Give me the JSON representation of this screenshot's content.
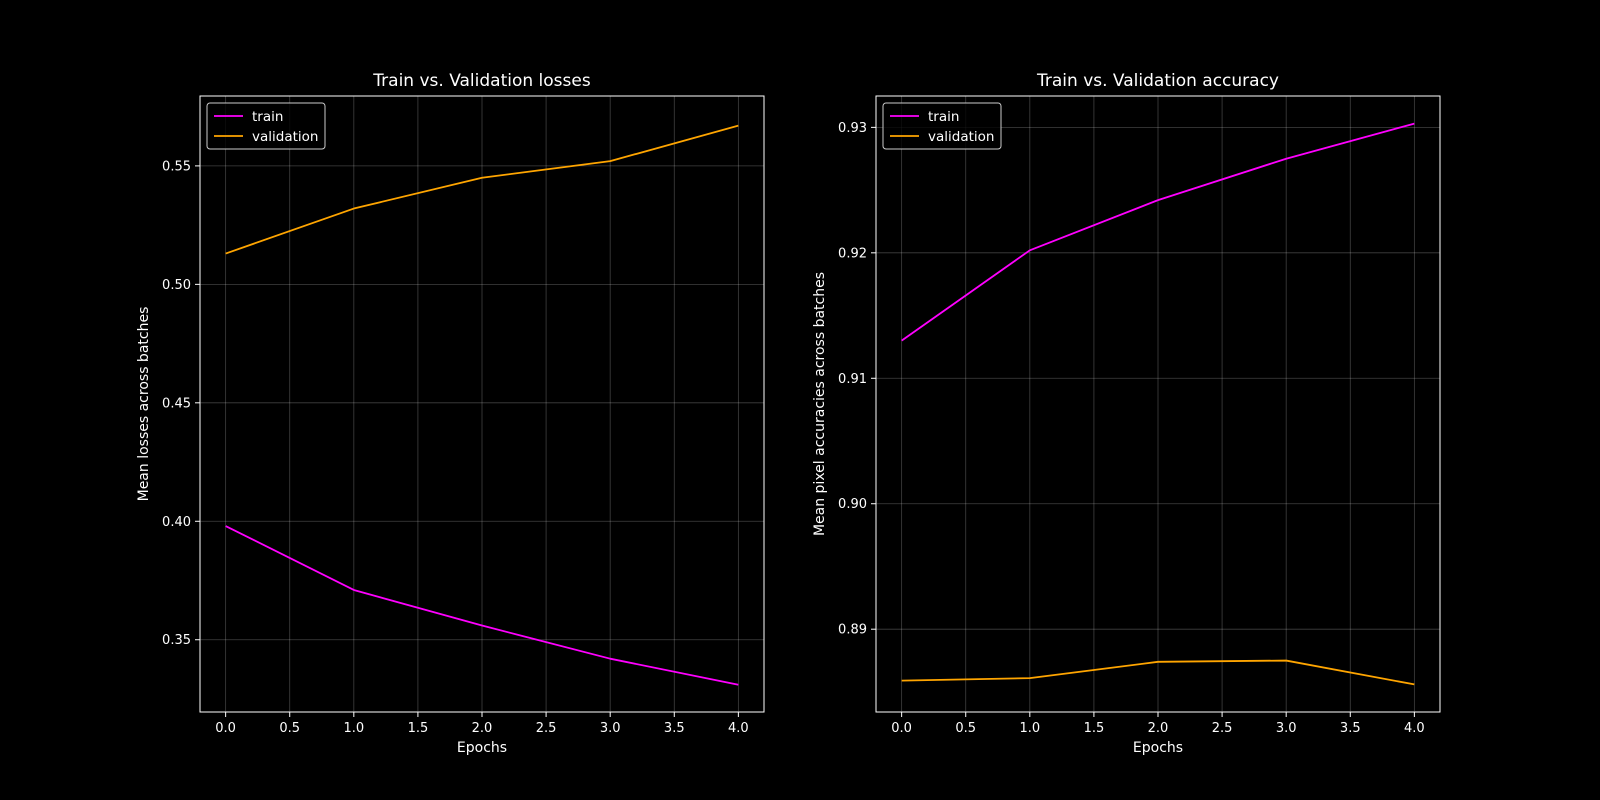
{
  "colors": {
    "background": "#000000",
    "axes": "#ffffff",
    "grid": "#ffffff",
    "train": "#ff00ff",
    "validation": "#ffa500"
  },
  "chart_data": [
    {
      "type": "line",
      "title": "Train vs. Validation losses",
      "xlabel": "Epochs",
      "ylabel": "Mean losses across batches",
      "xlim": [
        -0.2,
        4.2
      ],
      "ylim": [
        0.3195,
        0.5795
      ],
      "xticks": [
        0.0,
        0.5,
        1.0,
        1.5,
        2.0,
        2.5,
        3.0,
        3.5,
        4.0
      ],
      "xtick_labels": [
        "0.0",
        "0.5",
        "1.0",
        "1.5",
        "2.0",
        "2.5",
        "3.0",
        "3.5",
        "4.0"
      ],
      "yticks": [
        0.35,
        0.4,
        0.45,
        0.5,
        0.55
      ],
      "ytick_labels": [
        "0.35",
        "0.40",
        "0.45",
        "0.50",
        "0.55"
      ],
      "grid": true,
      "legend_position": "top-left",
      "x": [
        0,
        1,
        2,
        3,
        4
      ],
      "series": [
        {
          "name": "train",
          "color": "#ff00ff",
          "values": [
            0.398,
            0.371,
            0.356,
            0.342,
            0.331
          ]
        },
        {
          "name": "validation",
          "color": "#ffa500",
          "values": [
            0.513,
            0.532,
            0.545,
            0.552,
            0.567
          ]
        }
      ]
    },
    {
      "type": "line",
      "title": "Train vs. Validation accuracy",
      "xlabel": "Epochs",
      "ylabel": "Mean pixel accuracies across batches",
      "xlim": [
        -0.2,
        4.2
      ],
      "ylim": [
        0.8834,
        0.9325
      ],
      "xticks": [
        0.0,
        0.5,
        1.0,
        1.5,
        2.0,
        2.5,
        3.0,
        3.5,
        4.0
      ],
      "xtick_labels": [
        "0.0",
        "0.5",
        "1.0",
        "1.5",
        "2.0",
        "2.5",
        "3.0",
        "3.5",
        "4.0"
      ],
      "yticks": [
        0.89,
        0.9,
        0.91,
        0.92,
        0.93
      ],
      "ytick_labels": [
        "0.89",
        "0.90",
        "0.91",
        "0.92",
        "0.93"
      ],
      "grid": true,
      "legend_position": "top-left",
      "x": [
        0,
        1,
        2,
        3,
        4
      ],
      "series": [
        {
          "name": "train",
          "color": "#ff00ff",
          "values": [
            0.913,
            0.9202,
            0.9242,
            0.9275,
            0.9303
          ]
        },
        {
          "name": "validation",
          "color": "#ffa500",
          "values": [
            0.8859,
            0.8861,
            0.8874,
            0.8875,
            0.8856
          ]
        }
      ]
    }
  ]
}
